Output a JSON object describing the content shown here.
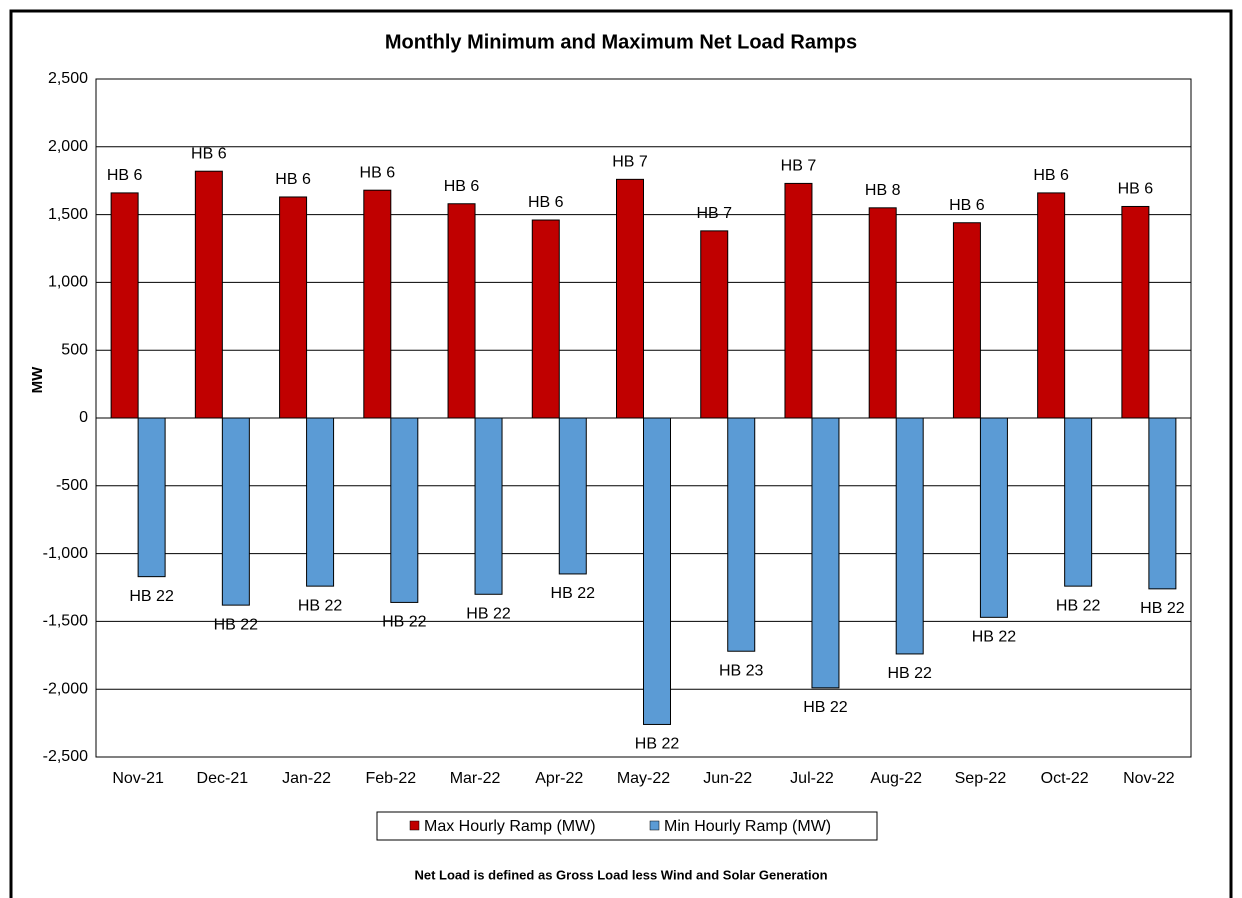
{
  "chart_data": {
    "type": "bar",
    "title": "Monthly Minimum and Maximum Net Load Ramps",
    "y_label": "MW",
    "footnote": "Net Load is defined as Gross Load less Wind and Solar Generation",
    "categories": [
      "Nov-21",
      "Dec-21",
      "Jan-22",
      "Feb-22",
      "Mar-22",
      "Apr-22",
      "May-22",
      "Jun-22",
      "Jul-22",
      "Aug-22",
      "Sep-22",
      "Oct-22",
      "Nov-22"
    ],
    "series": [
      {
        "name": "Max Hourly Ramp (MW)",
        "color": "#c00000",
        "values": [
          1660,
          1820,
          1630,
          1680,
          1580,
          1460,
          1760,
          1380,
          1730,
          1550,
          1440,
          1660,
          1560
        ],
        "annotations": [
          "HB 6",
          "HB 6",
          "HB 6",
          "HB 6",
          "HB 6",
          "HB 6",
          "HB 7",
          "HB 7",
          "HB 7",
          "HB 8",
          "HB 6",
          "HB 6",
          "HB 6"
        ]
      },
      {
        "name": "Min Hourly Ramp (MW)",
        "color": "#5b9bd5",
        "values": [
          -1170,
          -1380,
          -1240,
          -1360,
          -1300,
          -1150,
          -2260,
          -1720,
          -1990,
          -1740,
          -1470,
          -1240,
          -1260
        ],
        "annotations": [
          "HB 22",
          "HB 22",
          "HB 22",
          "HB 22",
          "HB 22",
          "HB 22",
          "HB 22",
          "HB 23",
          "HB 22",
          "HB 22",
          "HB 22",
          "HB 22",
          "HB 22"
        ]
      }
    ],
    "ylim": [
      -2500,
      2500
    ],
    "yticks": [
      {
        "value": 2500,
        "label": "2,500"
      },
      {
        "value": 2000,
        "label": "2,000"
      },
      {
        "value": 1500,
        "label": "1,500"
      },
      {
        "value": 1000,
        "label": "1,000"
      },
      500,
      0,
      -500,
      {
        "value": -1000,
        "label": "-1,000"
      },
      {
        "value": -1500,
        "label": "-1,500"
      },
      {
        "value": -2000,
        "label": "-2,000"
      },
      {
        "value": -2500,
        "label": "-2,500"
      }
    ],
    "grid": true,
    "legend": "bottom"
  }
}
